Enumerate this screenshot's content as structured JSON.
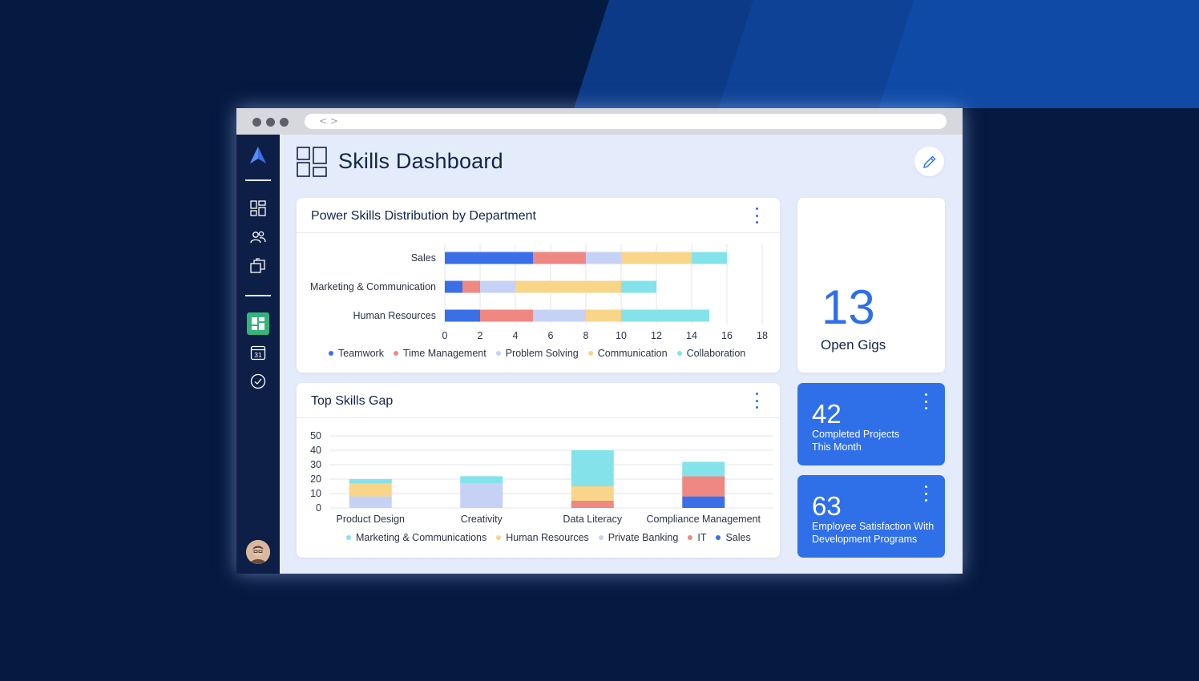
{
  "browser": {
    "url_glyph": "< >"
  },
  "header": {
    "title": "Skills Dashboard"
  },
  "colors": {
    "teamwork": "#3b6fe8",
    "time_management": "#ef8782",
    "problem_solving": "#c5d2f6",
    "communication": "#f8d588",
    "collaboration": "#84e3ea",
    "accent": "#2f6fe8",
    "sidebar": "#0e1f47",
    "active_nav": "#34b37a"
  },
  "sidebar": {
    "icons": [
      "logo-icon",
      "dashboard-grid-icon",
      "people-icon",
      "folders-icon",
      "dashboard-active-icon",
      "calendar-icon",
      "check-circle-icon"
    ],
    "calendar_day": "31"
  },
  "power_skills": {
    "title": "Power Skills Distribution by Department",
    "chart_data": {
      "type": "bar",
      "orientation": "horizontal",
      "stacked": true,
      "categories": [
        "Sales",
        "Marketing & Communication",
        "Human Resources"
      ],
      "series": [
        {
          "name": "Teamwork",
          "color": "#3b6fe8",
          "values": [
            5,
            1,
            2
          ]
        },
        {
          "name": "Time Management",
          "color": "#ef8782",
          "values": [
            3,
            1,
            3
          ]
        },
        {
          "name": "Problem Solving",
          "color": "#c5d2f6",
          "values": [
            2,
            2,
            3
          ]
        },
        {
          "name": "Communication",
          "color": "#f8d588",
          "values": [
            4,
            6,
            2
          ]
        },
        {
          "name": "Collaboration",
          "color": "#84e3ea",
          "values": [
            2,
            2,
            5
          ]
        }
      ],
      "xlim": [
        0,
        18
      ],
      "xticks": [
        "0",
        "2",
        "4",
        "6",
        "8",
        "10",
        "12",
        "14",
        "16",
        "18"
      ],
      "grid": true,
      "legend": "bottom"
    }
  },
  "skills_gap": {
    "title": "Top Skills Gap",
    "chart_data": {
      "type": "bar",
      "stacked": true,
      "categories": [
        "Product Design",
        "Creativity",
        "Data Literacy",
        "Compliance Management"
      ],
      "series": [
        {
          "name": "Sales",
          "color": "#3b6fe8",
          "values": [
            0,
            0,
            0,
            8
          ]
        },
        {
          "name": "IT",
          "color": "#ef8782",
          "values": [
            0,
            0,
            5,
            14
          ]
        },
        {
          "name": "Private Banking",
          "color": "#c5d2f6",
          "values": [
            8,
            17,
            0,
            0
          ]
        },
        {
          "name": "Human Resources",
          "color": "#f8d588",
          "values": [
            9,
            0,
            10,
            0
          ]
        },
        {
          "name": "Marketing & Communications",
          "color": "#84e3ea",
          "values": [
            3,
            5,
            25,
            10
          ]
        }
      ],
      "legend_order": [
        "Marketing & Communications",
        "Human Resources",
        "Private Banking",
        "IT",
        "Sales"
      ],
      "ylim": [
        0,
        50
      ],
      "yticks": [
        "0",
        "10",
        "20",
        "30",
        "40",
        "50"
      ],
      "grid": true,
      "legend": "bottom"
    }
  },
  "open_gigs": {
    "value": "13",
    "label": "Open Gigs"
  },
  "completed_projects": {
    "value": "42",
    "label_line1": "Completed Projects",
    "label_line2": "This Month"
  },
  "employee_satisfaction": {
    "value": "63",
    "label_line1": "Employee Satisfaction With",
    "label_line2": "Development Programs"
  }
}
